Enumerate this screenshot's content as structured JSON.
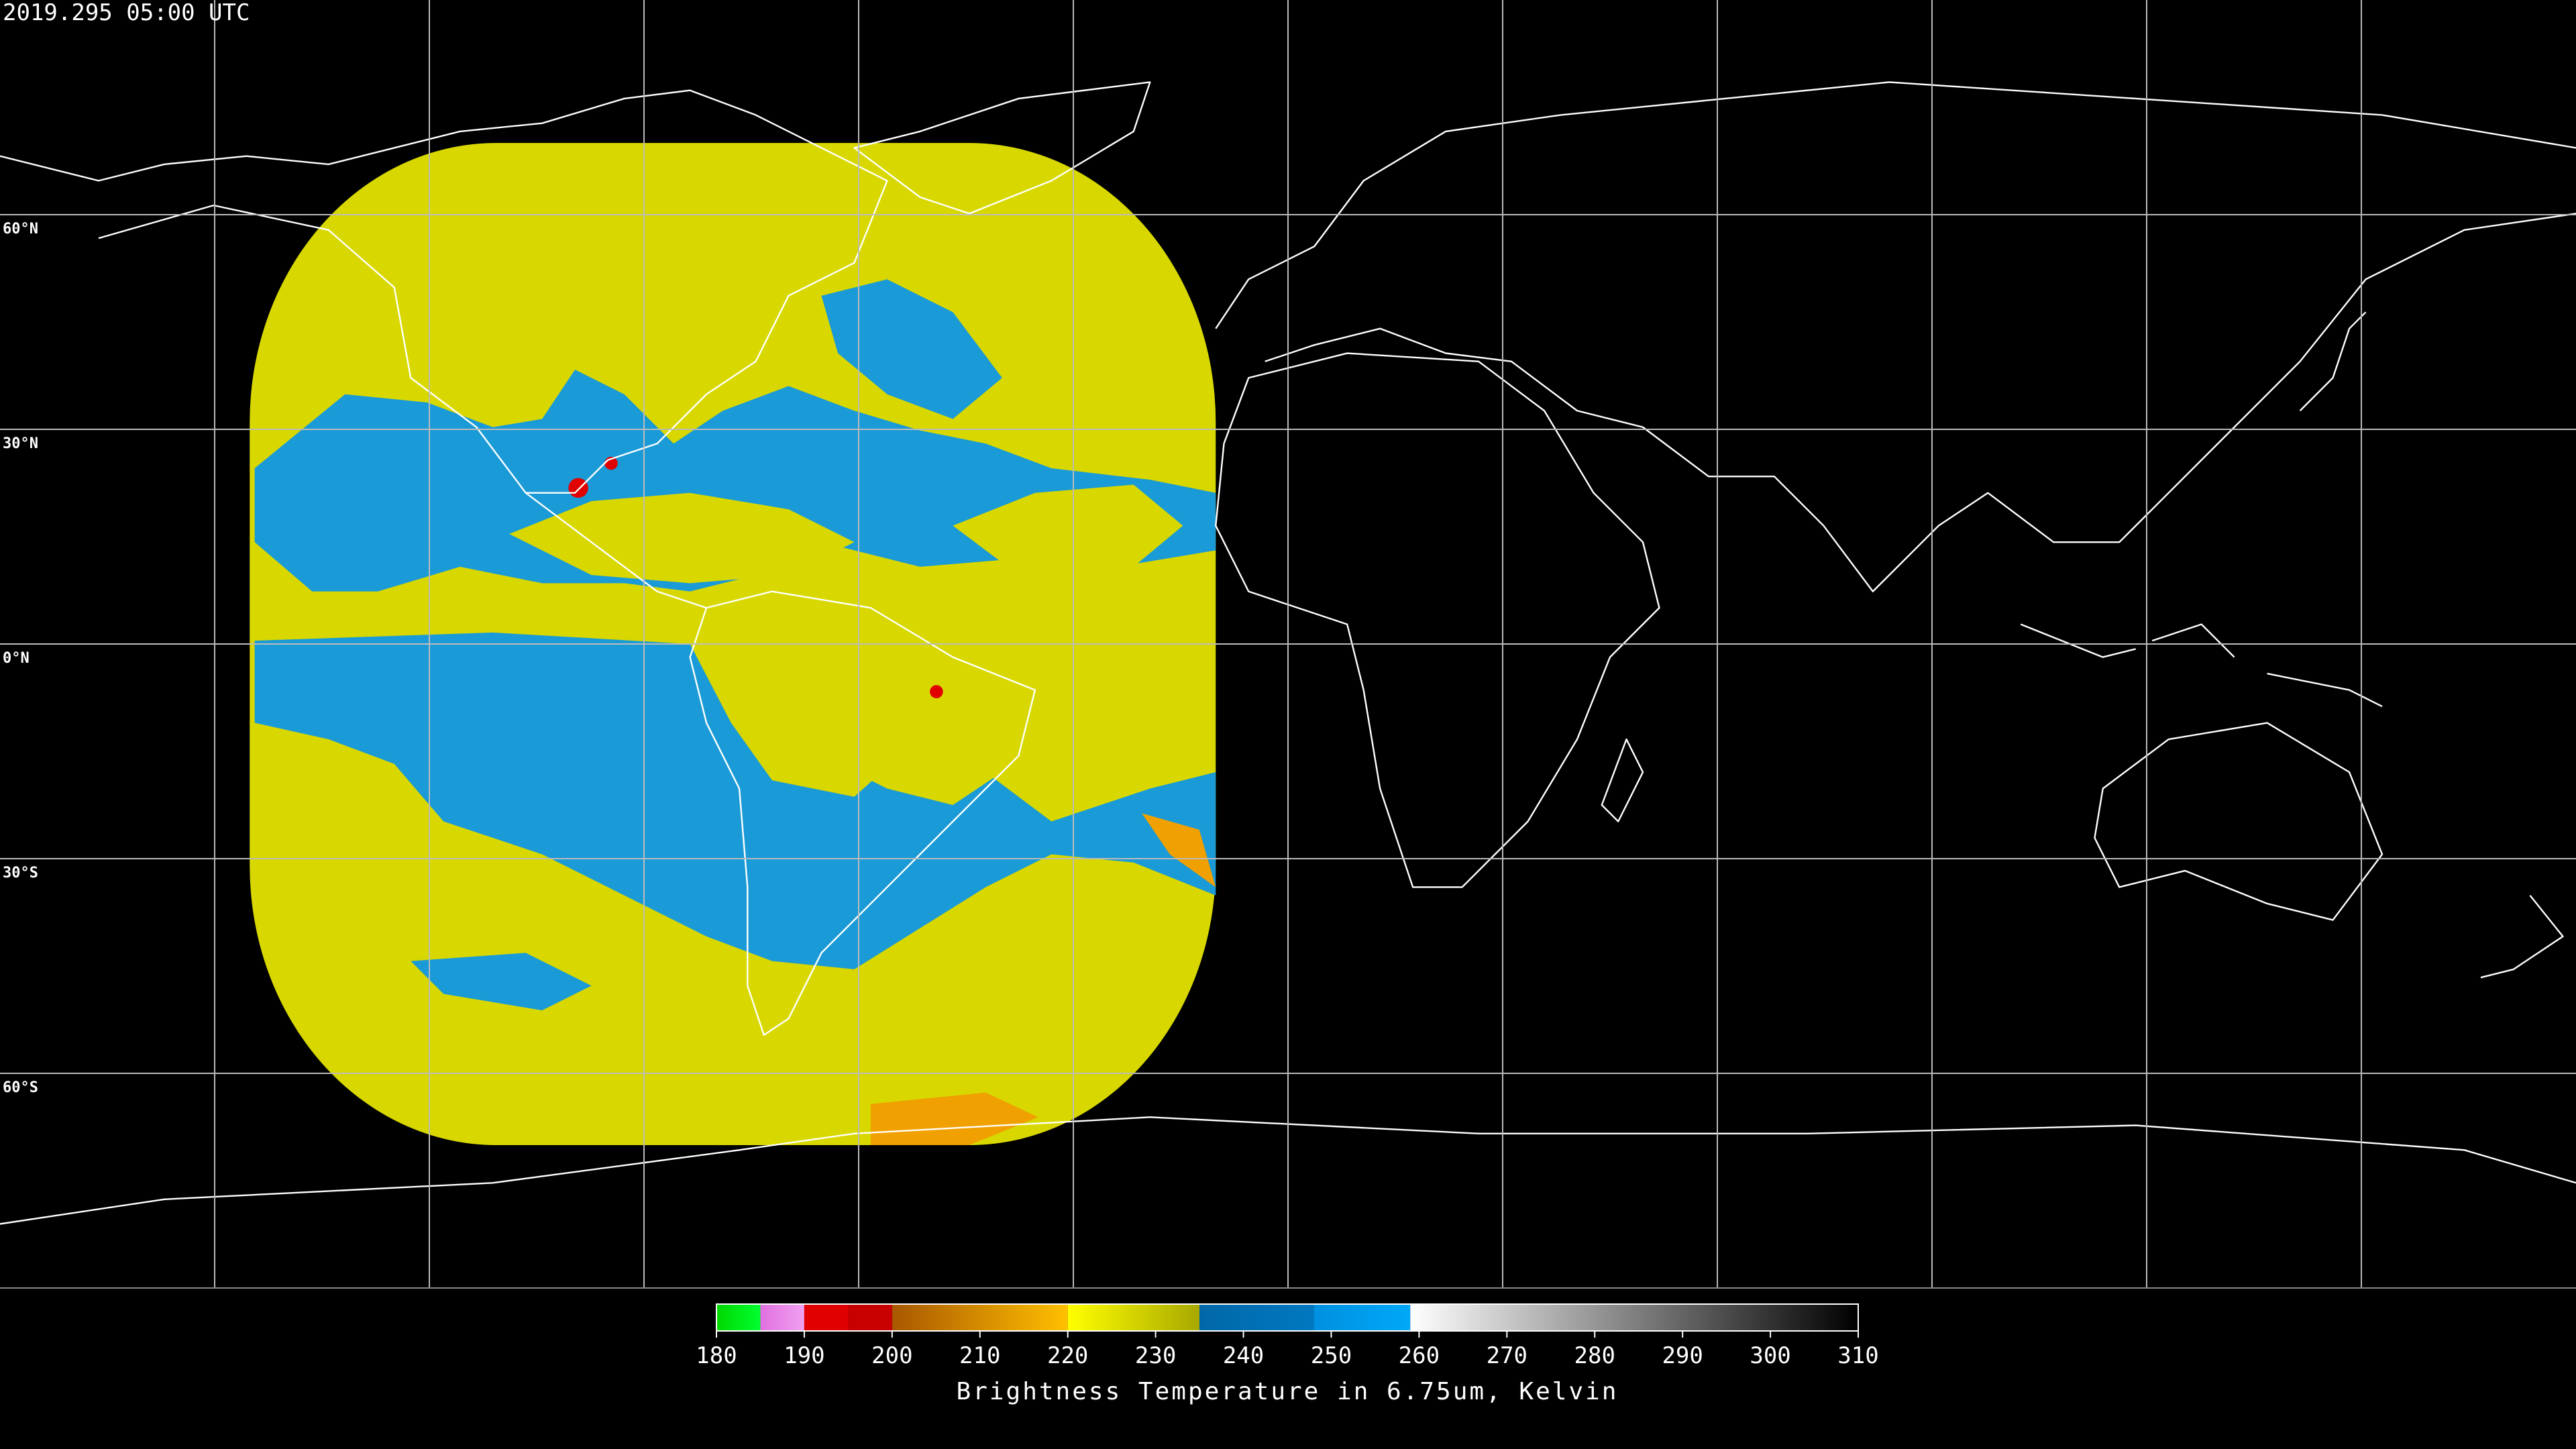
{
  "header": {
    "title": "2019.295 05:00 UTC"
  },
  "map": {
    "latitude_labels": [
      "60°N",
      "30°N",
      "0°N",
      "30°S",
      "60°S"
    ]
  },
  "colorbar": {
    "min": 180,
    "max": 310,
    "ticks": [
      180,
      190,
      200,
      210,
      220,
      230,
      240,
      250,
      260,
      270,
      280,
      290,
      300,
      310
    ],
    "label": "Brightness Temperature in 6.75um, Kelvin",
    "segments": [
      {
        "from": 180,
        "to": 185,
        "colors": [
          "#00d800",
          "#00ff30"
        ]
      },
      {
        "from": 185,
        "to": 190,
        "colors": [
          "#e070e0",
          "#f0a0f0"
        ]
      },
      {
        "from": 190,
        "to": 195,
        "colors": [
          "#e00000",
          "#e00000"
        ]
      },
      {
        "from": 195,
        "to": 200,
        "colors": [
          "#c80000",
          "#c80000"
        ]
      },
      {
        "from": 200,
        "to": 220,
        "colors": [
          "#a85800",
          "#ffc000"
        ]
      },
      {
        "from": 220,
        "to": 235,
        "colors": [
          "#ffff00",
          "#a8a800"
        ]
      },
      {
        "from": 235,
        "to": 248,
        "colors": [
          "#0068a8",
          "#0078c0"
        ]
      },
      {
        "from": 248,
        "to": 259,
        "colors": [
          "#0090e0",
          "#00a8f8"
        ]
      },
      {
        "from": 259,
        "to": 310,
        "colors": [
          "#ffffff",
          "#000000"
        ]
      }
    ]
  }
}
